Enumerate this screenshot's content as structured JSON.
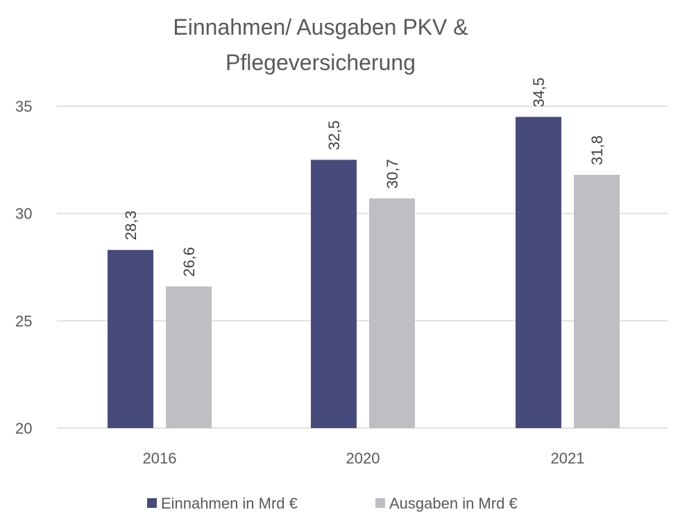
{
  "chart_data": {
    "type": "bar",
    "title": [
      "Einnahmen/ Ausgaben PKV &",
      "Pflegeversicherung"
    ],
    "categories": [
      "2016",
      "2020",
      "2021"
    ],
    "series": [
      {
        "name": "Einnahmen in Mrd €",
        "values": [
          28.3,
          32.5,
          34.5
        ],
        "labels": [
          "28,3",
          "32,5",
          "34,5"
        ],
        "color": "#474b7c"
      },
      {
        "name": "Ausgaben in Mrd €",
        "values": [
          26.6,
          30.7,
          31.8
        ],
        "labels": [
          "26,6",
          "30,7",
          "31,8"
        ],
        "color": "#bfbfc3"
      }
    ],
    "ylim": [
      20,
      35
    ],
    "yticks": [
      20,
      25,
      30,
      35
    ],
    "grid": true,
    "legend": "bottom"
  }
}
